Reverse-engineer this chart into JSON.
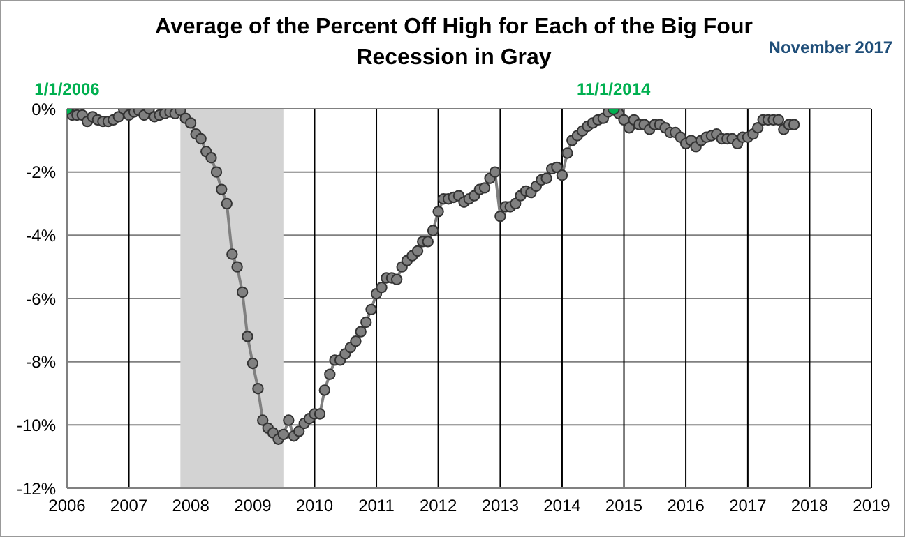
{
  "chart_data": {
    "type": "line",
    "title": "Average of the Percent Off High for Each of the Big Four",
    "subtitle": "Recession in Gray",
    "annotations": [
      {
        "text": "1/1/2006",
        "x": "2006-01",
        "y": 0
      },
      {
        "text": "11/1/2014",
        "x": "2014-11",
        "y": 0
      },
      "November 2017"
    ],
    "series": [
      {
        "color": "#808080",
        "marker": "circle",
        "x": [
          "2006-01",
          "2006-02",
          "2006-03",
          "2006-04",
          "2006-05",
          "2006-06",
          "2006-07",
          "2006-08",
          "2006-09",
          "2006-10",
          "2006-11",
          "2006-12",
          "2007-01",
          "2007-02",
          "2007-03",
          "2007-04",
          "2007-05",
          "2007-06",
          "2007-07",
          "2007-08",
          "2007-09",
          "2007-10",
          "2007-11",
          "2007-12",
          "2008-01",
          "2008-02",
          "2008-03",
          "2008-04",
          "2008-05",
          "2008-06",
          "2008-07",
          "2008-08",
          "2008-09",
          "2008-10",
          "2008-11",
          "2008-12",
          "2009-01",
          "2009-02",
          "2009-03",
          "2009-04",
          "2009-05",
          "2009-06",
          "2009-07",
          "2009-08",
          "2009-09",
          "2009-10",
          "2009-11",
          "2009-12",
          "2010-01",
          "2010-02",
          "2010-03",
          "2010-04",
          "2010-05",
          "2010-06",
          "2010-07",
          "2010-08",
          "2010-09",
          "2010-10",
          "2010-11",
          "2010-12",
          "2011-01",
          "2011-02",
          "2011-03",
          "2011-04",
          "2011-05",
          "2011-06",
          "2011-07",
          "2011-08",
          "2011-09",
          "2011-10",
          "2011-11",
          "2011-12",
          "2012-01",
          "2012-02",
          "2012-03",
          "2012-04",
          "2012-05",
          "2012-06",
          "2012-07",
          "2012-08",
          "2012-09",
          "2012-10",
          "2012-11",
          "2012-12",
          "2013-01",
          "2013-02",
          "2013-03",
          "2013-04",
          "2013-05",
          "2013-06",
          "2013-07",
          "2013-08",
          "2013-09",
          "2013-10",
          "2013-11",
          "2013-12",
          "2014-01",
          "2014-02",
          "2014-03",
          "2014-04",
          "2014-05",
          "2014-06",
          "2014-07",
          "2014-08",
          "2014-09",
          "2014-10",
          "2014-11",
          "2014-12",
          "2015-01",
          "2015-02",
          "2015-03",
          "2015-04",
          "2015-05",
          "2015-06",
          "2015-07",
          "2015-08",
          "2015-09",
          "2015-10",
          "2015-11",
          "2015-12",
          "2016-01",
          "2016-02",
          "2016-03",
          "2016-04",
          "2016-05",
          "2016-06",
          "2016-07",
          "2016-08",
          "2016-09",
          "2016-10",
          "2016-11",
          "2016-12",
          "2017-01",
          "2017-02",
          "2017-03",
          "2017-04",
          "2017-05",
          "2017-06",
          "2017-07",
          "2017-08",
          "2017-09",
          "2017-10"
        ],
        "values": [
          0,
          -0.2,
          -0.2,
          -0.2,
          -0.4,
          -0.25,
          -0.35,
          -0.4,
          -0.4,
          -0.35,
          -0.25,
          0,
          -0.2,
          -0.1,
          -0.05,
          -0.2,
          0,
          -0.25,
          -0.2,
          -0.15,
          -0.1,
          -0.15,
          -0.05,
          -0.3,
          -0.45,
          -0.8,
          -0.95,
          -1.35,
          -1.55,
          -2.0,
          -2.55,
          -3.0,
          -4.6,
          -5.0,
          -5.8,
          -7.2,
          -8.05,
          -8.85,
          -9.85,
          -10.1,
          -10.25,
          -10.45,
          -10.3,
          -9.85,
          -10.35,
          -10.2,
          -9.95,
          -9.8,
          -9.65,
          -9.65,
          -8.9,
          -8.4,
          -7.95,
          -7.95,
          -7.75,
          -7.55,
          -7.35,
          -7.05,
          -6.75,
          -6.35,
          -5.85,
          -5.65,
          -5.35,
          -5.35,
          -5.4,
          -5.0,
          -4.8,
          -4.65,
          -4.5,
          -4.2,
          -4.2,
          -3.85,
          -3.25,
          -2.85,
          -2.85,
          -2.8,
          -2.75,
          -2.95,
          -2.85,
          -2.75,
          -2.55,
          -2.5,
          -2.2,
          -2.0,
          -3.4,
          -3.1,
          -3.1,
          -3.0,
          -2.75,
          -2.6,
          -2.65,
          -2.45,
          -2.25,
          -2.2,
          -1.9,
          -1.85,
          -2.1,
          -1.4,
          -1.0,
          -0.85,
          -0.7,
          -0.55,
          -0.45,
          -0.35,
          -0.3,
          -0.1,
          0,
          -0.15,
          -0.35,
          -0.6,
          -0.35,
          -0.5,
          -0.5,
          -0.65,
          -0.5,
          -0.5,
          -0.6,
          -0.75,
          -0.75,
          -0.9,
          -1.1,
          -1.0,
          -1.2,
          -1.0,
          -0.9,
          -0.85,
          -0.8,
          -0.95,
          -0.95,
          -0.95,
          -1.1,
          -0.9,
          -0.9,
          -0.8,
          -0.6,
          -0.35,
          -0.35,
          -0.35,
          -0.35,
          -0.65,
          -0.5,
          -0.5
        ]
      },
      {
        "type": "scatter",
        "color": "#00b050",
        "marker": "circle",
        "x": [
          "2006-01",
          "2014-11"
        ],
        "values": [
          0,
          0
        ]
      }
    ],
    "bands": [
      {
        "axis": "x",
        "from": "2007-11",
        "to": "2009-07",
        "color": "#d3d3d3"
      }
    ],
    "xlim": [
      "2006",
      "2019"
    ],
    "xticks": [
      "2006",
      "2007",
      "2008",
      "2009",
      "2010",
      "2011",
      "2012",
      "2013",
      "2014",
      "2015",
      "2016",
      "2017",
      "2018",
      "2019"
    ],
    "ylim": [
      -12,
      0
    ],
    "yticks": [
      {
        "value": 0,
        "label": "0%"
      },
      {
        "value": -2,
        "label": "-2%"
      },
      {
        "value": -4,
        "label": "-4%"
      },
      {
        "value": -6,
        "label": "-6%"
      },
      {
        "value": -8,
        "label": "-8%"
      },
      {
        "value": -10,
        "label": "-10%"
      },
      {
        "value": -12,
        "label": "-12%"
      }
    ],
    "grid": true
  }
}
